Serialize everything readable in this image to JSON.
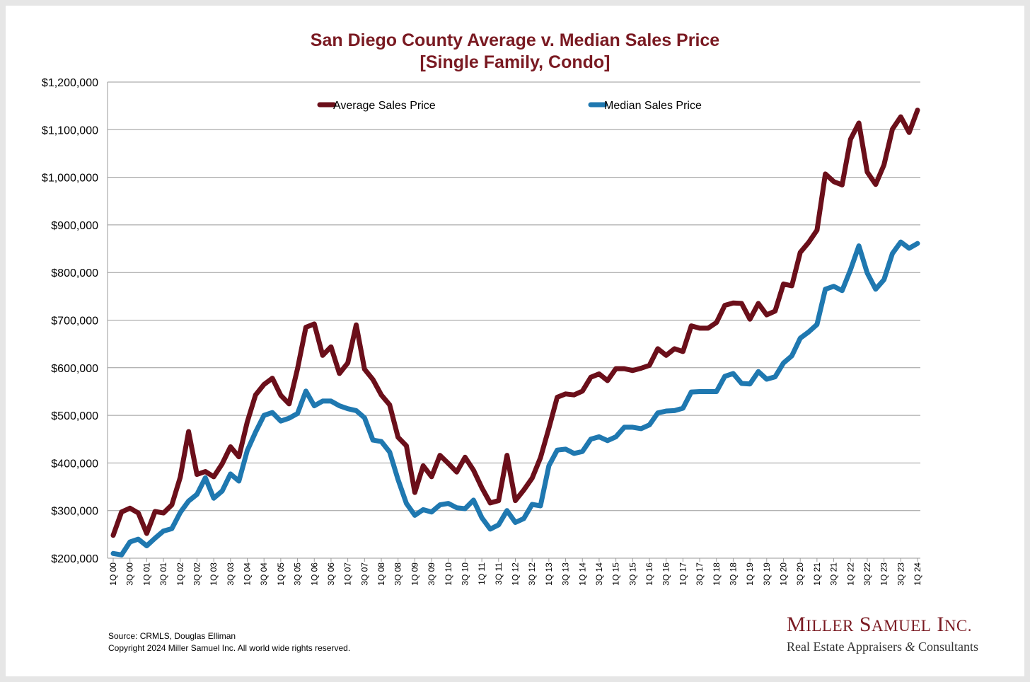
{
  "chart_data": {
    "type": "line",
    "title": "San Diego County Average v. Median Sales Price",
    "subtitle": "[Single Family, Condo]",
    "xlabel": "",
    "ylabel": "",
    "ylim": [
      200000,
      1200000
    ],
    "y_tick_labels": [
      "$200,000",
      "$300,000",
      "$400,000",
      "$500,000",
      "$600,000",
      "$700,000",
      "$800,000",
      "$900,000",
      "$1,000,000",
      "$1,100,000",
      "$1,200,000"
    ],
    "x_tick_labels": [
      "1Q 00",
      "3Q 00",
      "1Q 01",
      "3Q 01",
      "1Q 02",
      "3Q 02",
      "1Q 03",
      "3Q 03",
      "1Q 04",
      "3Q 04",
      "1Q 05",
      "3Q 05",
      "1Q 06",
      "3Q 06",
      "1Q 07",
      "3Q 07",
      "1Q 08",
      "3Q 08",
      "1Q 09",
      "3Q 09",
      "1Q 10",
      "3Q 10",
      "1Q 11",
      "3Q 11",
      "1Q 12",
      "3Q 12",
      "1Q 13",
      "3Q 13",
      "1Q 14",
      "3Q 14",
      "1Q 15",
      "3Q 15",
      "1Q 16",
      "3Q 16",
      "1Q 17",
      "3Q 17",
      "1Q 18",
      "3Q 18",
      "1Q 19",
      "3Q 19",
      "1Q 20",
      "3Q 20",
      "1Q 21",
      "3Q 21",
      "1Q 22",
      "3Q 22",
      "1Q 23",
      "3Q 23",
      "1Q 24"
    ],
    "grid": true,
    "legend_position": "top",
    "series": [
      {
        "name": "Average Sales Price",
        "color": "#6b0f1a",
        "values": [
          248000,
          297000,
          305000,
          295000,
          252000,
          298000,
          295000,
          312000,
          370000,
          466000,
          376000,
          382000,
          371000,
          398000,
          434000,
          413000,
          486000,
          543000,
          565000,
          578000,
          542000,
          524000,
          598000,
          685000,
          692000,
          626000,
          644000,
          588000,
          610000,
          690000,
          597000,
          575000,
          543000,
          522000,
          454000,
          436000,
          338000,
          394000,
          371000,
          416000,
          399000,
          381000,
          412000,
          385000,
          348000,
          316000,
          321000,
          416000,
          321000,
          343000,
          368000,
          411000,
          473000,
          538000,
          545000,
          543000,
          551000,
          580000,
          587000,
          573000,
          598000,
          598000,
          594000,
          599000,
          605000,
          640000,
          626000,
          640000,
          634000,
          688000,
          683000,
          683000,
          695000,
          731000,
          736000,
          735000,
          702000,
          735000,
          711000,
          719000,
          776000,
          772000,
          842000,
          863000,
          889000,
          1007000,
          991000,
          984000,
          1080000,
          1114000,
          1011000,
          985000,
          1026000,
          1101000,
          1127000,
          1094000,
          1141000
        ]
      },
      {
        "name": "Median Sales Price",
        "color": "#1f78b0",
        "values": [
          210000,
          207000,
          234000,
          240000,
          226000,
          242000,
          257000,
          262000,
          296000,
          320000,
          334000,
          369000,
          326000,
          341000,
          377000,
          362000,
          426000,
          465000,
          500000,
          506000,
          488000,
          494000,
          504000,
          551000,
          520000,
          530000,
          530000,
          520000,
          514000,
          510000,
          495000,
          448000,
          445000,
          423000,
          365000,
          315000,
          290000,
          302000,
          297000,
          312000,
          315000,
          306000,
          304000,
          322000,
          285000,
          261000,
          270000,
          300000,
          275000,
          283000,
          313000,
          310000,
          394000,
          427000,
          429000,
          420000,
          424000,
          450000,
          455000,
          447000,
          455000,
          475000,
          475000,
          472000,
          480000,
          505000,
          509000,
          510000,
          515000,
          549000,
          550000,
          550000,
          550000,
          582000,
          588000,
          567000,
          566000,
          592000,
          576000,
          581000,
          610000,
          625000,
          662000,
          675000,
          691000,
          765000,
          771000,
          762000,
          806000,
          856000,
          799000,
          765000,
          785000,
          840000,
          864000,
          851000,
          861000
        ]
      }
    ]
  },
  "footer": {
    "source": "Source: CRMLS, Douglas Elliman",
    "copyright": "Copyright 2024 Miller Samuel Inc.  All world wide rights reserved."
  },
  "logo": {
    "name": "Miller Samuel Inc.",
    "tagline": "Real Estate Appraisers & Consultants"
  }
}
